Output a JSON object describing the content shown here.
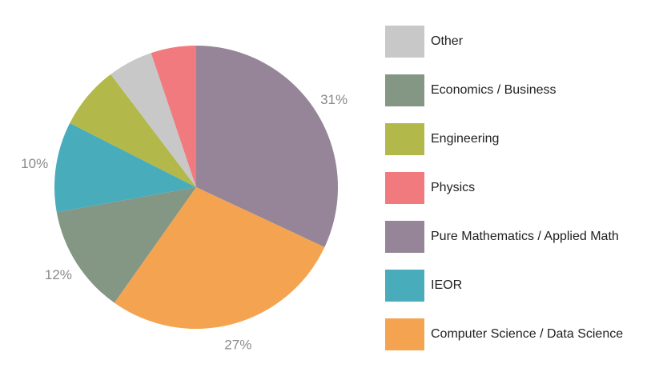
{
  "chart_data": {
    "type": "pie",
    "title": "",
    "start": "12 o'clock",
    "direction": "clockwise",
    "slices": [
      {
        "name": "Pure Mathematics / Applied Math",
        "value": 31,
        "label": "31%",
        "color": "#968598"
      },
      {
        "name": "Computer Science / Data Science",
        "value": 27,
        "label": "27%",
        "color": "#f4a451"
      },
      {
        "name": "Economics / Business",
        "value": 12,
        "label": "12%",
        "color": "#849684"
      },
      {
        "name": "IEOR",
        "value": 10,
        "label": "10%",
        "color": "#49acbb"
      },
      {
        "name": "Engineering",
        "value": 7,
        "label": "",
        "color": "#b3b84a"
      },
      {
        "name": "Other",
        "value": 5,
        "label": "",
        "color": "#c8c8c8"
      },
      {
        "name": "Physics",
        "value": 5,
        "label": "",
        "color": "#f07a7e"
      }
    ],
    "legend": {
      "placement": "right",
      "entries": [
        {
          "label": "Other",
          "color": "#c8c8c8"
        },
        {
          "label": "Economics / Business",
          "color": "#849684"
        },
        {
          "label": "Engineering",
          "color": "#b3b84a"
        },
        {
          "label": "Physics",
          "color": "#f07a7e"
        },
        {
          "label": "Pure Mathematics / Applied Math",
          "color": "#968598"
        },
        {
          "label": "IEOR",
          "color": "#49acbb"
        },
        {
          "label": "Computer Science / Data Science",
          "color": "#f4a451"
        }
      ]
    }
  }
}
